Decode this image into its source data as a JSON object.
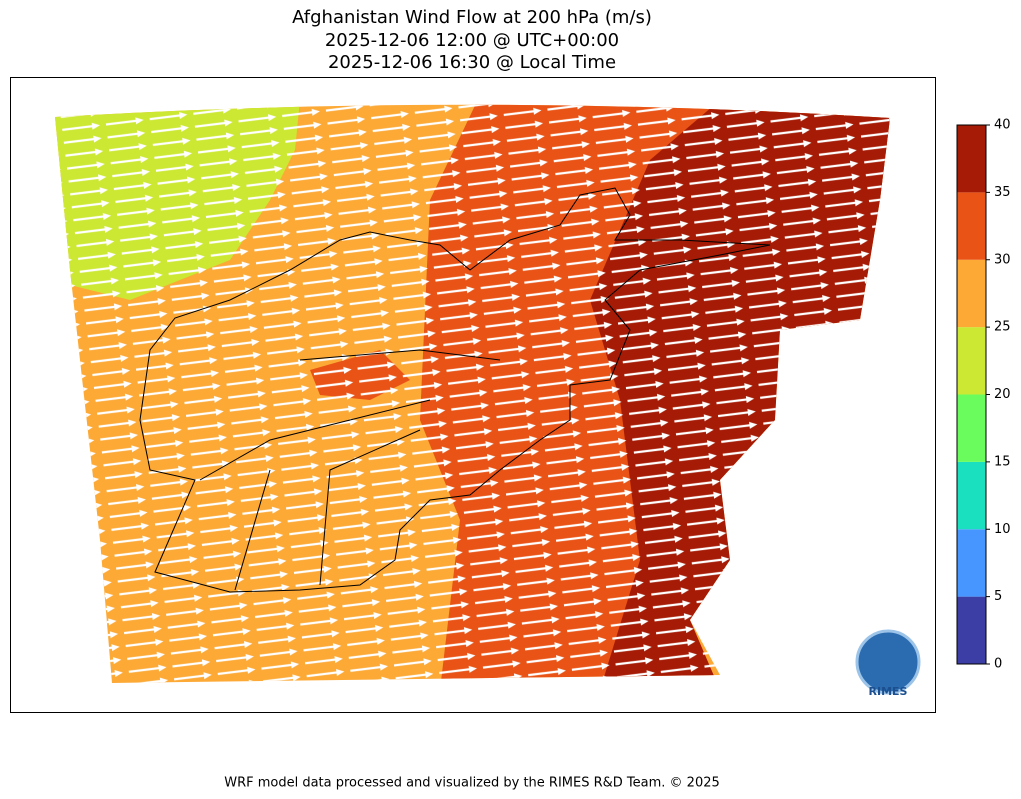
{
  "title": [
    "Afghanistan Wind Flow at 200 hPa (m/s)",
    "2025-12-06 12:00 @ UTC+00:00",
    "2025-12-06 16:30 @ Local Time"
  ],
  "colorbar": {
    "ticks": [
      0,
      5,
      10,
      15,
      20,
      25,
      30,
      35,
      40
    ],
    "colors": [
      "#3d3ea5",
      "#4795ff",
      "#1ae0c0",
      "#6afc5c",
      "#cce833",
      "#fca936",
      "#e95316",
      "#a51b06"
    ]
  },
  "logo": "RIMES",
  "footer": "WRF model data processed and visualized by the RIMES R&D Team. © 2025"
}
